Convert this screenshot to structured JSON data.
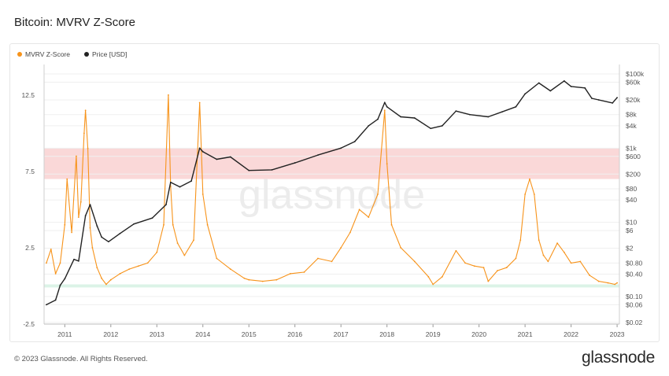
{
  "header": {
    "title": "Bitcoin: MVRV Z-Score"
  },
  "legend": [
    {
      "label": "MVRV Z-Score",
      "color": "#f7931a"
    },
    {
      "label": "Price [USD]",
      "color": "#222222"
    }
  ],
  "watermark": "glassnode",
  "footer": {
    "copyright": "© 2023 Glassnode. All Rights Reserved.",
    "brand": "glassnode"
  },
  "chart_data": {
    "type": "line",
    "x_ticks": [
      "2011",
      "2012",
      "2013",
      "2014",
      "2015",
      "2016",
      "2017",
      "2018",
      "2019",
      "2020",
      "2021",
      "2022",
      "2023"
    ],
    "left_axis": {
      "label": "",
      "ylim": [
        -2.5,
        14.5
      ],
      "ticks": [
        "12.5",
        "7.5",
        "2.5",
        "-2.5"
      ]
    },
    "right_axis": {
      "label": "",
      "scale": "log",
      "ticks": [
        "$100k",
        "$60k",
        "$20k",
        "$8k",
        "$4k",
        "$1k",
        "$600",
        "$200",
        "$80",
        "$40",
        "$10",
        "$6",
        "$2",
        "$0.80",
        "$0.40",
        "$0.10",
        "$0.06",
        "$0.02"
      ]
    },
    "bands": [
      {
        "zone": "overvalued",
        "from": 7.0,
        "to": 9.0,
        "color": "#f8c8c8"
      },
      {
        "zone": "undervalued",
        "from": -0.1,
        "to": 0.1,
        "color": "#cdeedd"
      }
    ],
    "series": [
      {
        "name": "MVRV Z-Score",
        "color": "#f7931a",
        "axis": "left",
        "x": [
          2010.6,
          2010.7,
          2010.8,
          2010.9,
          2011.0,
          2011.05,
          2011.15,
          2011.25,
          2011.3,
          2011.35,
          2011.42,
          2011.45,
          2011.5,
          2011.55,
          2011.6,
          2011.7,
          2011.8,
          2011.9,
          2012.0,
          2012.2,
          2012.4,
          2012.6,
          2012.8,
          2013.0,
          2013.15,
          2013.25,
          2013.3,
          2013.35,
          2013.45,
          2013.6,
          2013.8,
          2013.93,
          2014.0,
          2014.1,
          2014.3,
          2014.6,
          2014.9,
          2015.0,
          2015.3,
          2015.6,
          2015.9,
          2016.2,
          2016.5,
          2016.8,
          2017.0,
          2017.2,
          2017.4,
          2017.6,
          2017.8,
          2017.95,
          2018.0,
          2018.1,
          2018.3,
          2018.6,
          2018.9,
          2019.0,
          2019.2,
          2019.5,
          2019.7,
          2019.9,
          2020.1,
          2020.2,
          2020.4,
          2020.6,
          2020.8,
          2020.9,
          2021.0,
          2021.1,
          2021.2,
          2021.3,
          2021.4,
          2021.5,
          2021.7,
          2021.85,
          2022.0,
          2022.2,
          2022.4,
          2022.6,
          2022.8,
          2022.95,
          2023.0
        ],
        "values": [
          1.5,
          2.4,
          0.8,
          1.5,
          4.0,
          7.0,
          3.5,
          8.5,
          4.5,
          5.5,
          10.0,
          11.5,
          9.0,
          3.8,
          2.5,
          1.2,
          0.5,
          0.1,
          0.4,
          0.8,
          1.1,
          1.3,
          1.5,
          2.2,
          4.0,
          12.5,
          6.5,
          4.0,
          2.8,
          2.0,
          3.0,
          12.0,
          6.0,
          4.0,
          1.8,
          1.1,
          0.5,
          0.4,
          0.3,
          0.4,
          0.8,
          0.9,
          1.8,
          1.6,
          2.5,
          3.5,
          5.0,
          4.5,
          6.0,
          11.5,
          8.0,
          4.0,
          2.5,
          1.6,
          0.6,
          0.1,
          0.6,
          2.3,
          1.5,
          1.3,
          1.2,
          0.3,
          1.0,
          1.2,
          1.8,
          3.0,
          6.0,
          7.0,
          6.0,
          3.0,
          2.0,
          1.6,
          2.8,
          2.2,
          1.5,
          1.6,
          0.7,
          0.3,
          0.2,
          0.1,
          0.2
        ]
      },
      {
        "name": "Price [USD]",
        "color": "#222222",
        "axis": "right",
        "x": [
          2010.6,
          2010.8,
          2010.9,
          2011.0,
          2011.2,
          2011.3,
          2011.45,
          2011.55,
          2011.7,
          2011.8,
          2011.95,
          2012.2,
          2012.5,
          2012.9,
          2013.2,
          2013.3,
          2013.5,
          2013.75,
          2013.93,
          2014.0,
          2014.3,
          2014.6,
          2015.0,
          2015.5,
          2016.0,
          2016.5,
          2017.0,
          2017.3,
          2017.6,
          2017.8,
          2017.95,
          2018.0,
          2018.3,
          2018.6,
          2018.95,
          2019.2,
          2019.5,
          2019.8,
          2020.2,
          2020.5,
          2020.8,
          2021.0,
          2021.3,
          2021.55,
          2021.85,
          2022.0,
          2022.3,
          2022.45,
          2022.6,
          2022.9,
          2023.0
        ],
        "values": [
          0.06,
          0.08,
          0.2,
          0.3,
          1,
          0.9,
          15,
          30,
          8,
          4,
          3,
          5,
          9,
          13,
          30,
          120,
          90,
          130,
          1000,
          800,
          500,
          580,
          250,
          260,
          400,
          650,
          1000,
          1500,
          4000,
          6000,
          17000,
          13000,
          7000,
          6500,
          3400,
          4000,
          10000,
          8000,
          7000,
          9500,
          13000,
          29000,
          57000,
          35000,
          65000,
          46000,
          42000,
          22000,
          20000,
          16500,
          23000
        ]
      }
    ]
  }
}
